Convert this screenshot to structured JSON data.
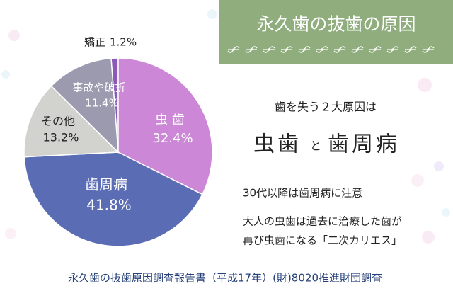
{
  "chart_data": {
    "type": "pie",
    "categories": [
      "矯正",
      "虫 歯",
      "歯周病",
      "その他",
      "事故や破折"
    ],
    "values": [
      1.2,
      32.4,
      41.8,
      13.2,
      11.4
    ],
    "value_labels": [
      "1.2%",
      "32.4%",
      "41.8%",
      "13.2%",
      "11.4%"
    ],
    "colors": [
      "#8a5ab8",
      "#cc88d6",
      "#5a6cb4",
      "#d2d3cf",
      "#9b9aae"
    ]
  },
  "header": {
    "title": "永久歯の抜歯の原因"
  },
  "headline": {
    "intro": "歯を失う２大原因は",
    "cause1": "虫歯",
    "conjunction": "と",
    "cause2": "歯周病"
  },
  "notes": [
    "30代以降は歯周病に注意",
    "大人の虫歯は過去に治療した歯が",
    "再び虫歯になる「二次カリエス」"
  ],
  "source": "永久歯の抜歯原因調査報告書（平成17年）(財)8020推進財団調査"
}
